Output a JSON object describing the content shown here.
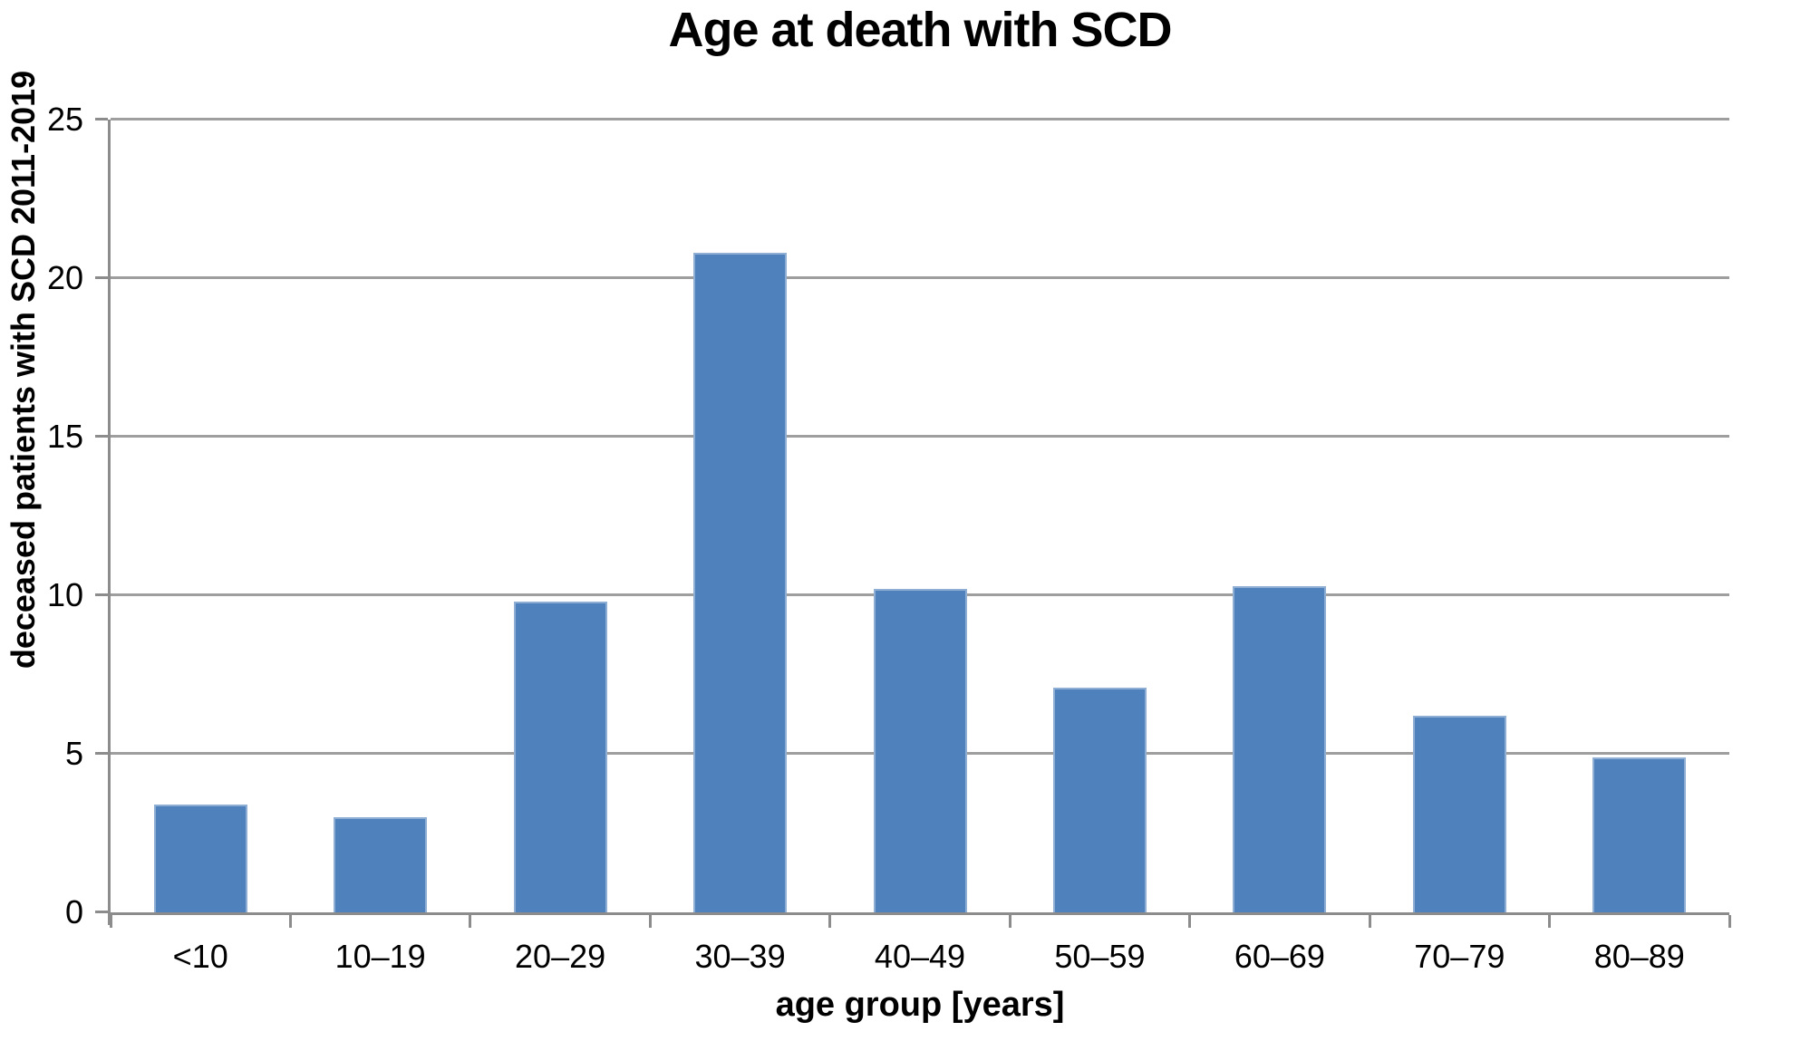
{
  "chart_data": {
    "type": "bar",
    "title": "Age at death with SCD",
    "xlabel": "age group [years]",
    "ylabel": "deceased patients with SCD 2011-2019",
    "categories": [
      "<10",
      "10–19",
      "20–29",
      "30–39",
      "40–49",
      "50–59",
      "60–69",
      "70–79",
      "80–89"
    ],
    "values": [
      3.4,
      3.0,
      9.8,
      20.8,
      10.2,
      7.1,
      10.3,
      6.2,
      4.9
    ],
    "ylim": [
      0,
      25
    ],
    "yticks": [
      0,
      5,
      10,
      15,
      20,
      25
    ],
    "grid": true,
    "legend": false,
    "bar_color": "#4F81BD",
    "bar_edge_color": "#8FAED4",
    "gridline_color": "#9E9E9E",
    "axis_color": "#8C8C8C",
    "text_color": "#000000",
    "background_color": "#FFFFFF"
  }
}
